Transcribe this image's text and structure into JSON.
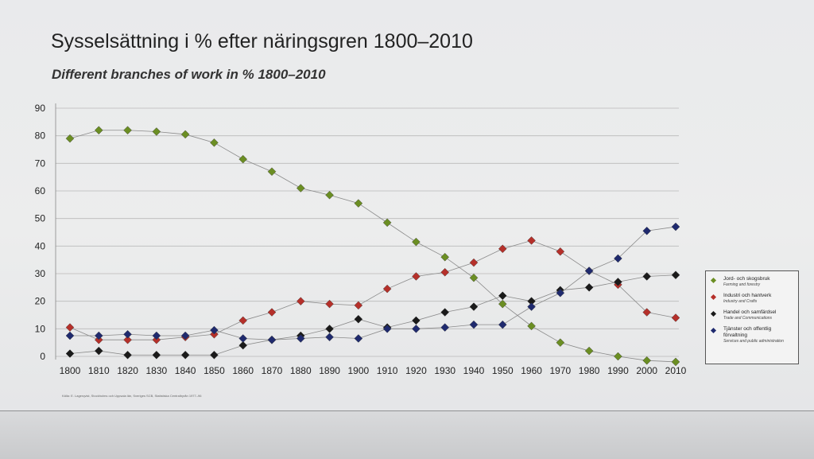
{
  "page": {
    "title": "Sysselsättning i % efter näringsgren 1800–2010",
    "subtitle": "Different branches of work in % 1800–2010",
    "source_note": "Källa: E. Lagerqvist, Stockholms och Uppsala län, Sveriges SCB, Statistiska Centralbyrån 1977–96"
  },
  "chart_data": {
    "type": "line",
    "title": "Sysselsättning i % efter näringsgren 1800–2010",
    "subtitle": "Different branches of work in % 1800–2010",
    "xlabel": "",
    "ylabel": "",
    "x": [
      1800,
      1810,
      1820,
      1830,
      1840,
      1850,
      1860,
      1870,
      1880,
      1890,
      1900,
      1910,
      1920,
      1930,
      1940,
      1950,
      1960,
      1970,
      1980,
      1990,
      2000,
      2010
    ],
    "ylim": [
      0,
      90
    ],
    "yticks": [
      0,
      10,
      20,
      30,
      40,
      50,
      60,
      70,
      80,
      90
    ],
    "grid": true,
    "legend_position": "right",
    "series": [
      {
        "name": "Jord- och skogsbruk",
        "name_en": "Farming and forestry",
        "color": "#6b8e23",
        "values": [
          79,
          82,
          82,
          81.5,
          80.5,
          77.5,
          71.5,
          67,
          61,
          58.5,
          55.5,
          48.5,
          41.5,
          36,
          28.5,
          19,
          11,
          5,
          2,
          0,
          -1.5,
          -2
        ]
      },
      {
        "name": "Industri och hantverk",
        "name_en": "Industry and Crafts",
        "color": "#b5302a",
        "values": [
          10.5,
          6,
          6,
          6,
          7,
          8,
          13,
          16,
          20,
          19,
          18.5,
          24.5,
          29,
          30.5,
          34,
          39,
          42,
          38,
          31,
          26,
          16,
          14
        ]
      },
      {
        "name": "Handel och samfärdsel",
        "name_en": "Trade and Communications",
        "color": "#1a1a1a",
        "values": [
          1,
          2,
          0.5,
          0.5,
          0.5,
          0.5,
          4,
          6,
          7.5,
          10,
          13.5,
          10.5,
          13,
          16,
          18,
          22,
          20,
          24,
          25,
          27,
          29,
          29.5
        ]
      },
      {
        "name": "Tjänster och offentlig förvaltning",
        "name_en": "Services and public administration",
        "color": "#1f2a6e",
        "values": [
          7.5,
          7.5,
          8,
          7.5,
          7.5,
          9.5,
          6.5,
          6,
          6.5,
          7,
          6.5,
          10,
          10,
          10.5,
          11.5,
          11.5,
          18,
          23,
          31,
          35.5,
          45.5,
          47
        ]
      }
    ]
  }
}
